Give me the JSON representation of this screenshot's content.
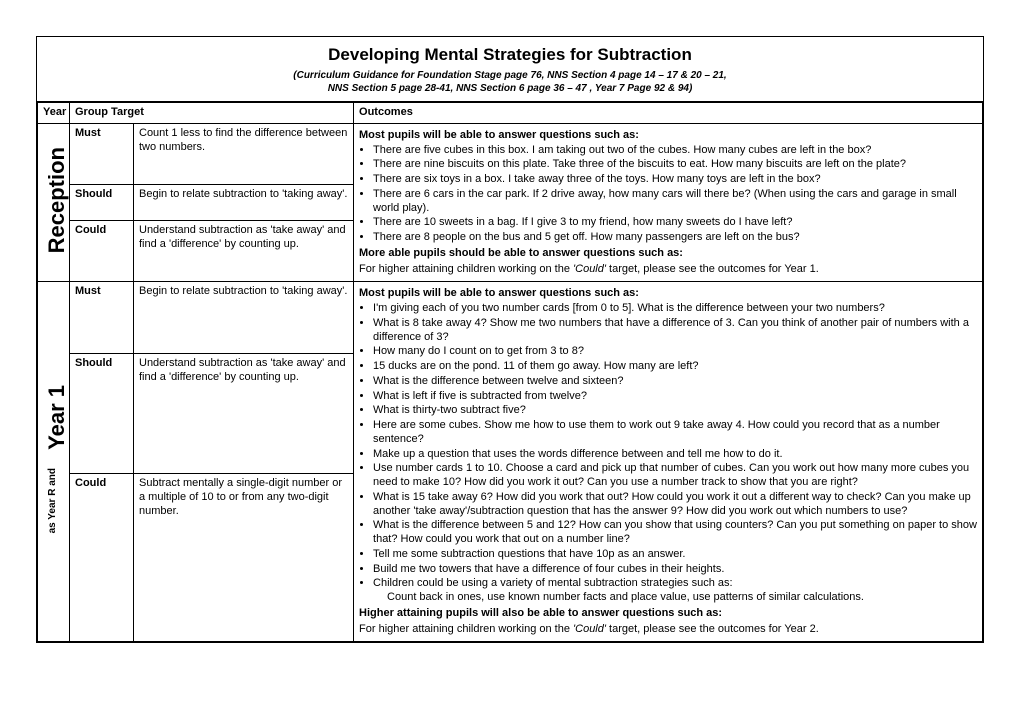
{
  "title": "Developing Mental Strategies for Subtraction",
  "subtitle_line1": "(Curriculum Guidance for Foundation Stage page 76, NNS Section 4 page 14 – 17 & 20 – 21,",
  "subtitle_line2": "NNS Section 5 page 28-41,  NNS Section 6 page 36 – 47 , Year 7 Page 92 & 94)",
  "headers": {
    "year": "Year",
    "group_target": "Group Target",
    "outcomes": "Outcomes"
  },
  "reception": {
    "label": "Reception",
    "must": {
      "level": "Must",
      "target": "Count 1 less to find the difference between two numbers."
    },
    "should": {
      "level": "Should",
      "target": "Begin to relate subtraction to 'taking away'."
    },
    "could": {
      "level": "Could",
      "target": "Understand subtraction as 'take away' and find a 'difference' by counting up."
    },
    "lead_most": "Most pupils will be able to answer questions such as:",
    "bullets": [
      "There are five cubes in this box. I am taking out two of the cubes. How many cubes are left in the box?",
      "There are nine biscuits on this plate.  Take three of the biscuits to eat.  How many biscuits are left on the plate?",
      "There are six toys in a box. I take away three of the toys.  How many toys are left in the box?",
      "There are 6 cars in the car park. If 2 drive away, how many cars will there be?  (When using the cars and garage in small world play).",
      "There are 10 sweets in a bag.  If I give 3 to my friend, how many sweets do I have left?",
      "There are 8 people on the bus and 5 get off.   How many passengers are left on the bus?"
    ],
    "lead_more": "More able pupils should be able to answer questions such as:",
    "more_text_a": "For higher attaining children working on the ",
    "more_text_b": "'Could'",
    "more_text_c": " target, please see the outcomes for Year 1."
  },
  "year1": {
    "label_big": "Year 1",
    "label_small": "as Year R and",
    "must": {
      "level": "Must",
      "target": "Begin to relate subtraction to 'taking away'."
    },
    "should": {
      "level": "Should",
      "target": "Understand subtraction as 'take away' and find a 'difference' by counting up."
    },
    "could": {
      "level": "Could",
      "target": "Subtract mentally a single-digit number or a multiple of 10 to or from any two-digit number."
    },
    "lead_most": "Most pupils will be able to answer questions such as:",
    "bullets": [
      "I'm giving each of you two number cards [from 0 to 5].  What is the difference between your two numbers?",
      "What is 8 take away 4?  Show me two numbers that have a difference of 3. Can you think of another pair of numbers with a difference of 3?",
      "How many do I count on to get from 3 to 8?",
      "15 ducks are on the pond. 11 of them go away.  How many are left?",
      "What is the difference between twelve and sixteen?",
      "What is left if five is subtracted from twelve?",
      "What is thirty-two subtract five?",
      "Here are some cubes. Show me how to use them to work out 9 take away 4. How could you record that as a number sentence?",
      "Make up a question that uses the words difference between and tell me how to do it.",
      "Use number cards 1 to 10. Choose a card and pick up that number of cubes. Can you work out how many more cubes you need to make 10? How did you work it out?  Can you use a number track to show that you are right?",
      "What is 15 take away 6? How did you work that out? How could you work it out a different way to check?  Can you make up another 'take away'/subtraction question that has the answer 9? How did you work out which numbers to use?",
      "What is the difference between 5 and 12? How can you show that using counters? Can you put something on paper to show that? How could you work that out on a number line?",
      "Tell me some subtraction questions that have 10p as an answer.",
      "Build me two towers that have a difference of four cubes in their heights."
    ],
    "strategies_lead": "Children could be using a variety of mental subtraction strategies such as:",
    "strategies_text": "Count back in ones, use known number facts and place value, use patterns of similar calculations.",
    "lead_higher": "Higher attaining pupils will also be able to answer questions such as:",
    "higher_a": "For higher attaining children working on the ",
    "higher_b": "'Could'",
    "higher_c": " target, please see the outcomes for Year 2."
  }
}
